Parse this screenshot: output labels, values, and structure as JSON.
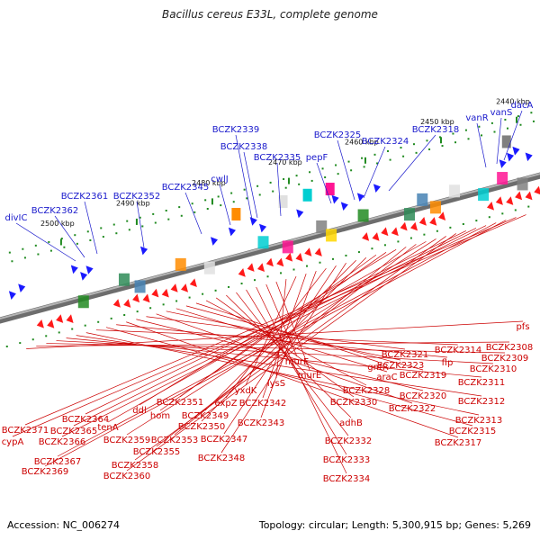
{
  "title": "Bacillus cereus E33L, complete genome",
  "footer": {
    "accession": "Accession: NC_006274",
    "summary": "Topology: circular; Length: 5,300,915 bp; Genes: 5,269"
  },
  "colors": {
    "forward_label": "#1a1acc",
    "reverse_label": "#cc0000",
    "forward_gene": "#1a1aff",
    "reverse_gene": "#ff1a1a",
    "backbone": "#888888",
    "scale_tick": "#1f8a1f"
  },
  "scale_labels": [
    "2440 kbp",
    "2450 kbp",
    "2460 kbp",
    "2470 kbp",
    "2480 kbp",
    "2490 kbp",
    "2500 kbp"
  ],
  "forward_genes": [
    "dacA",
    "vanS",
    "vanR",
    "BCZK2318",
    "BCZK2324",
    "BCZK2325",
    "pepF",
    "BCZK2335",
    "BCZK2338",
    "BCZK2339",
    "cwlJ",
    "BCZK2345",
    "BCZK2352",
    "BCZK2361",
    "BCZK2362",
    "divIC"
  ],
  "reverse_genes": [
    "pfs",
    "BCZK2308",
    "BCZK2309",
    "BCZK2310",
    "BCZK2311",
    "BCZK2312",
    "BCZK2313",
    "BCZK2314",
    "BCZK2315",
    "flp",
    "BCZK2317",
    "BCZK2320",
    "BCZK2321",
    "BCZK2322",
    "BCZK2323",
    "araC",
    "BCZK2319",
    "gntR",
    "BCZK2328",
    "BCZK2330",
    "adhB",
    "BCZK2332",
    "BCZK2333",
    "BCZK2334",
    "murE",
    "murE",
    "lysS",
    "yxdK",
    "BCZK2342",
    "BCZK2343",
    "expZ",
    "BCZK2347",
    "BCZK2348",
    "BCZK2349",
    "BCZK2350",
    "BCZK2351",
    "hom",
    "ddl",
    "BCZK2353",
    "BCZK2355",
    "tenA",
    "BCZK2359",
    "BCZK2358",
    "BCZK2360",
    "BCZK2364",
    "BCZK2365",
    "BCZK2366",
    "BCZK2367",
    "BCZK2369",
    "BCZK2371",
    "cypA"
  ]
}
